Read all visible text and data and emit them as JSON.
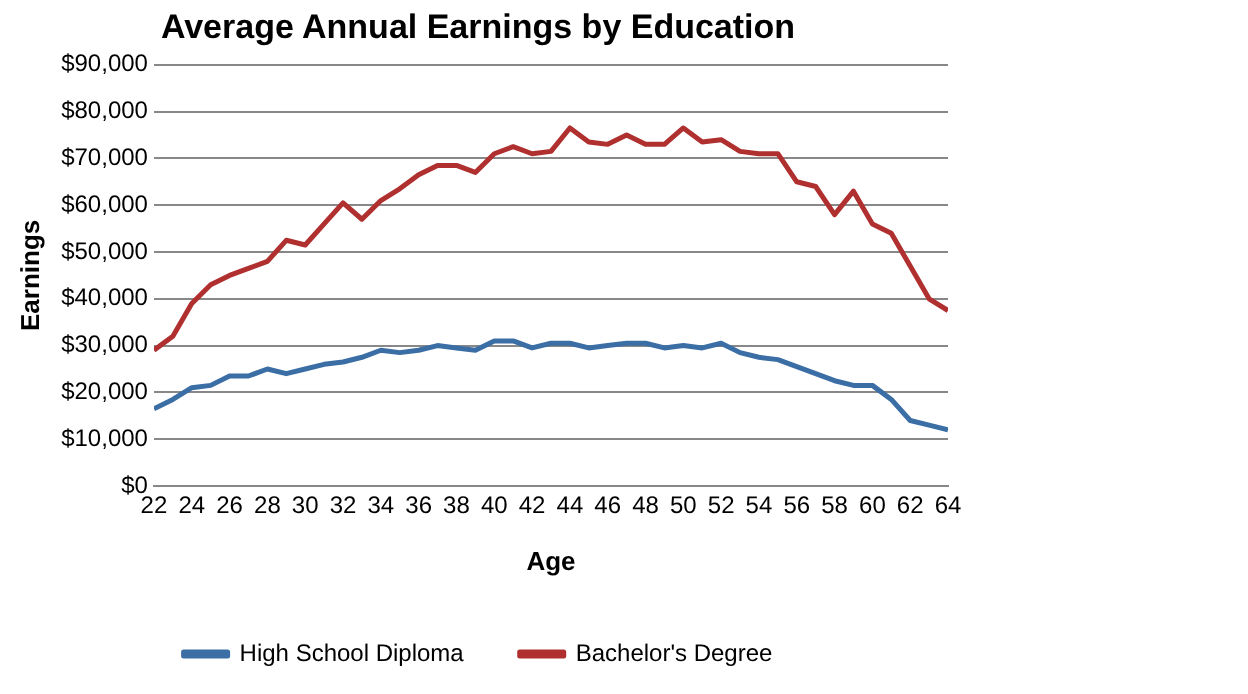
{
  "chart_data": {
    "type": "line",
    "title": "Average Annual Earnings by Education",
    "xlabel": "Age",
    "ylabel": "Earnings",
    "x": [
      22,
      23,
      24,
      25,
      26,
      27,
      28,
      29,
      30,
      31,
      32,
      33,
      34,
      35,
      36,
      37,
      38,
      39,
      40,
      41,
      42,
      43,
      44,
      45,
      46,
      47,
      48,
      49,
      50,
      51,
      52,
      53,
      54,
      55,
      56,
      57,
      58,
      59,
      60,
      61,
      62,
      63,
      64
    ],
    "xlim": [
      22,
      64
    ],
    "xticks": [
      22,
      24,
      26,
      28,
      30,
      32,
      34,
      36,
      38,
      40,
      42,
      44,
      46,
      48,
      50,
      52,
      54,
      56,
      58,
      60,
      62,
      64
    ],
    "ylim": [
      0,
      90000
    ],
    "yticks": [
      {
        "value": 0,
        "label": "$0"
      },
      {
        "value": 10000,
        "label": "$10,000"
      },
      {
        "value": 20000,
        "label": "$20,000"
      },
      {
        "value": 30000,
        "label": "$30,000"
      },
      {
        "value": 40000,
        "label": "$40,000"
      },
      {
        "value": 50000,
        "label": "$50,000"
      },
      {
        "value": 60000,
        "label": "$60,000"
      },
      {
        "value": 70000,
        "label": "$70,000"
      },
      {
        "value": 80000,
        "label": "$80,000"
      },
      {
        "value": 90000,
        "label": "$90,000"
      }
    ],
    "grid": "y",
    "legend": "bottom",
    "marker": "none",
    "series": [
      {
        "name": "High School Diploma",
        "color": "#3a6ea5",
        "values": [
          16500,
          18500,
          21000,
          21500,
          23500,
          23500,
          25000,
          24000,
          25000,
          26000,
          26500,
          27500,
          29000,
          28500,
          29000,
          30000,
          29500,
          29000,
          31000,
          31000,
          29500,
          30500,
          30500,
          29500,
          30000,
          30500,
          30500,
          29500,
          30000,
          29500,
          30500,
          28500,
          27500,
          27000,
          25500,
          24000,
          22500,
          21500,
          21500,
          18500,
          14000,
          13000,
          12000
        ]
      },
      {
        "name": "Bachelor's Degree",
        "color": "#b03030",
        "values": [
          29000,
          32000,
          39000,
          43000,
          45000,
          46500,
          48000,
          52500,
          51500,
          56000,
          60500,
          57000,
          61000,
          63500,
          66500,
          68500,
          68500,
          67000,
          71000,
          72500,
          71000,
          71500,
          76500,
          73500,
          73000,
          75000,
          73000,
          73000,
          76500,
          73500,
          74000,
          71500,
          71000,
          71000,
          65000,
          64000,
          58000,
          63000,
          56000,
          54000,
          47000,
          40000,
          37500
        ]
      }
    ]
  }
}
